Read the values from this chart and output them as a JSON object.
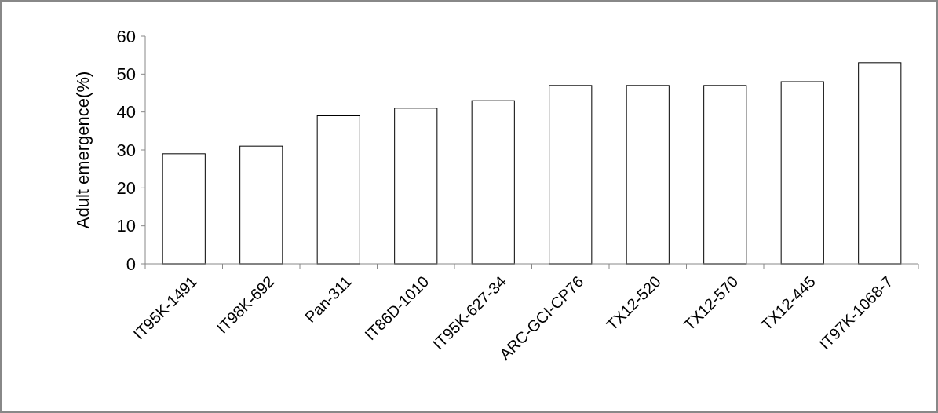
{
  "chart_data": {
    "type": "bar",
    "ylabel": "Adult emergence(%)",
    "categories": [
      "IT95K-1491",
      "IT98K-692",
      "Pan-311",
      "IT86D-1010",
      "IT95K-627-34",
      "ARC-GCI-CP76",
      "TX12-520",
      "TX12-570",
      "TX12-445",
      "IT97K-1068-7"
    ],
    "values": [
      29,
      31,
      39,
      41,
      43,
      47,
      47,
      47,
      48,
      53
    ],
    "color": "#ffffff",
    "ylim": [
      0,
      60
    ],
    "yticks": [
      0,
      10,
      20,
      30,
      40,
      50,
      60
    ],
    "grid": false
  }
}
